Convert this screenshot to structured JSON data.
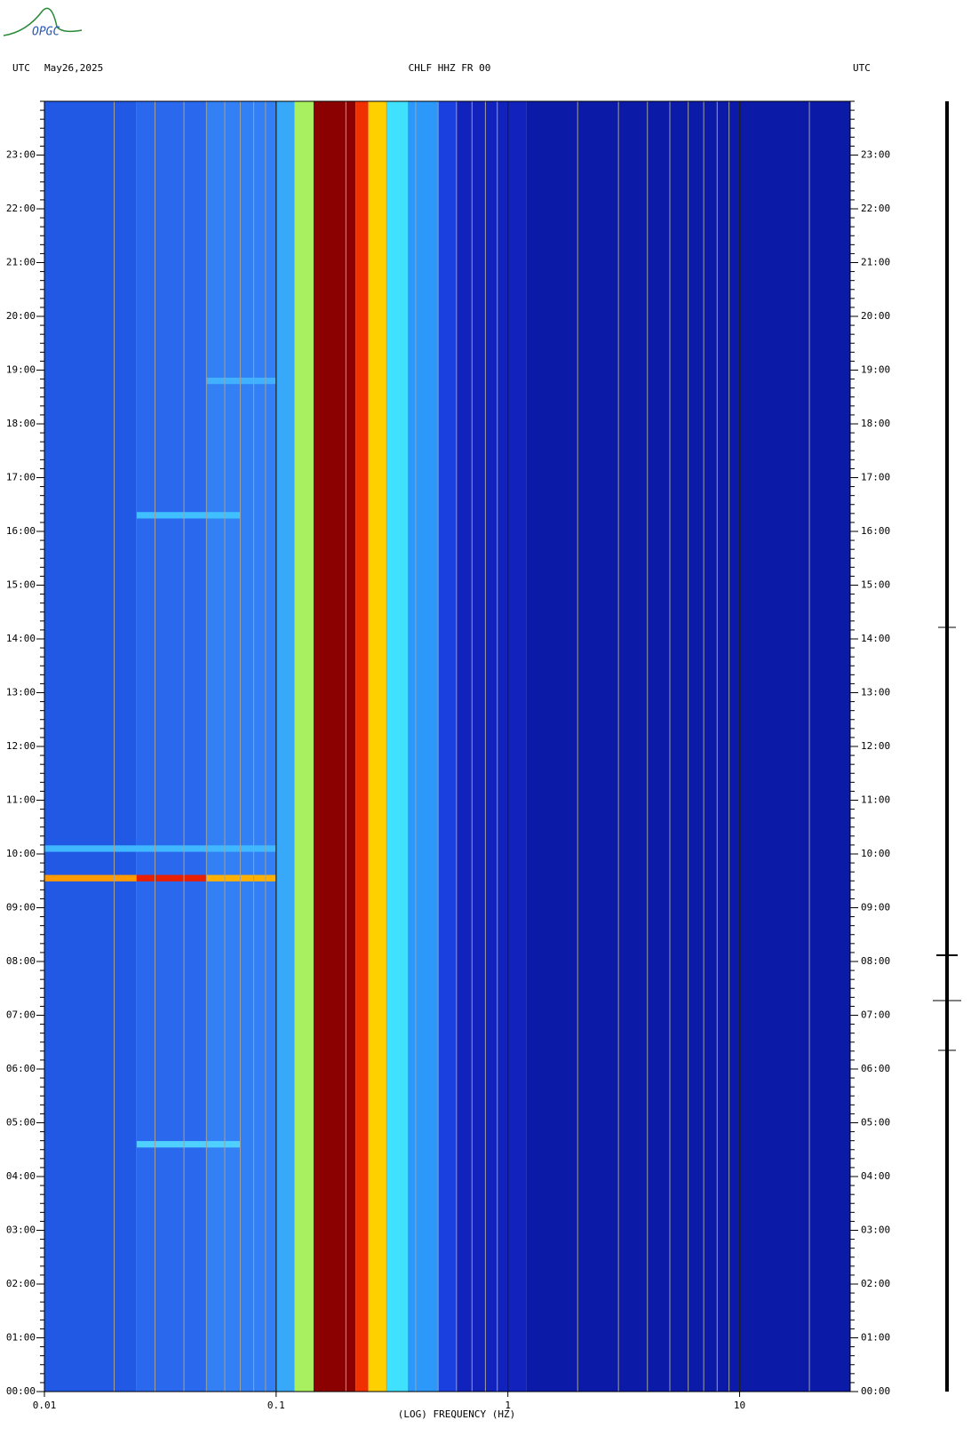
{
  "logo": {
    "text": "OPGC"
  },
  "chart_data": {
    "type": "spectrogram",
    "title_left": "UTC",
    "date": "May26,2025",
    "title": "CHLF HHZ FR 00",
    "title_right": "UTC",
    "xlabel": "(LOG) FREQUENCY (HZ)",
    "xscale": "log",
    "xlim": [
      0.01,
      30
    ],
    "xticks": [
      0.01,
      0.1,
      1,
      10
    ],
    "grid": true,
    "ylim": [
      0,
      24
    ],
    "yticks": [
      {
        "value": 0,
        "label": "00:00"
      },
      {
        "value": 1,
        "label": "01:00"
      },
      {
        "value": 2,
        "label": "02:00"
      },
      {
        "value": 3,
        "label": "03:00"
      },
      {
        "value": 4,
        "label": "04:00"
      },
      {
        "value": 5,
        "label": "05:00"
      },
      {
        "value": 6,
        "label": "06:00"
      },
      {
        "value": 7,
        "label": "07:00"
      },
      {
        "value": 8,
        "label": "08:00"
      },
      {
        "value": 9,
        "label": "09:00"
      },
      {
        "value": 10,
        "label": "10:00"
      },
      {
        "value": 11,
        "label": "11:00"
      },
      {
        "value": 12,
        "label": "12:00"
      },
      {
        "value": 13,
        "label": "13:00"
      },
      {
        "value": 14,
        "label": "14:00"
      },
      {
        "value": 15,
        "label": "15:00"
      },
      {
        "value": 16,
        "label": "16:00"
      },
      {
        "value": 17,
        "label": "17:00"
      },
      {
        "value": 18,
        "label": "18:00"
      },
      {
        "value": 19,
        "label": "19:00"
      },
      {
        "value": 20,
        "label": "20:00"
      },
      {
        "value": 21,
        "label": "21:00"
      },
      {
        "value": 22,
        "label": "22:00"
      },
      {
        "value": 23,
        "label": "23:00"
      }
    ],
    "bands": [
      {
        "from": 0.01,
        "to": 0.025,
        "color": "#2158e4"
      },
      {
        "from": 0.025,
        "to": 0.05,
        "color": "#2a68ee"
      },
      {
        "from": 0.05,
        "to": 0.1,
        "color": "#3280f4"
      },
      {
        "from": 0.1,
        "to": 0.12,
        "color": "#38a8f8"
      },
      {
        "from": 0.12,
        "to": 0.145,
        "color": "#a8f060"
      },
      {
        "from": 0.145,
        "to": 0.22,
        "color": "#8b0000"
      },
      {
        "from": 0.22,
        "to": 0.25,
        "color": "#f03000"
      },
      {
        "from": 0.25,
        "to": 0.3,
        "color": "#ffd000"
      },
      {
        "from": 0.3,
        "to": 0.37,
        "color": "#40e0ff"
      },
      {
        "from": 0.37,
        "to": 0.5,
        "color": "#2c98fa"
      },
      {
        "from": 0.5,
        "to": 0.6,
        "color": "#1a40e0"
      },
      {
        "from": 0.6,
        "to": 1.2,
        "color": "#1222bc"
      },
      {
        "from": 1.2,
        "to": 30,
        "color": "#0c1aa8"
      }
    ],
    "events": [
      {
        "time": 9.55,
        "fmin": 0.01,
        "fmax": 0.025,
        "color": "#ff9a00"
      },
      {
        "time": 9.55,
        "fmin": 0.025,
        "fmax": 0.05,
        "color": "#e82000"
      },
      {
        "time": 9.55,
        "fmin": 0.05,
        "fmax": 0.1,
        "color": "#ffb000"
      },
      {
        "time": 10.1,
        "fmin": 0.01,
        "fmax": 0.1,
        "color": "#40b8ff"
      },
      {
        "time": 4.6,
        "fmin": 0.025,
        "fmax": 0.07,
        "color": "#50d0ff"
      },
      {
        "time": 16.3,
        "fmin": 0.025,
        "fmax": 0.07,
        "color": "#40c0ff"
      },
      {
        "time": 18.8,
        "fmin": 0.05,
        "fmax": 0.1,
        "color": "#40b0ff"
      }
    ]
  }
}
